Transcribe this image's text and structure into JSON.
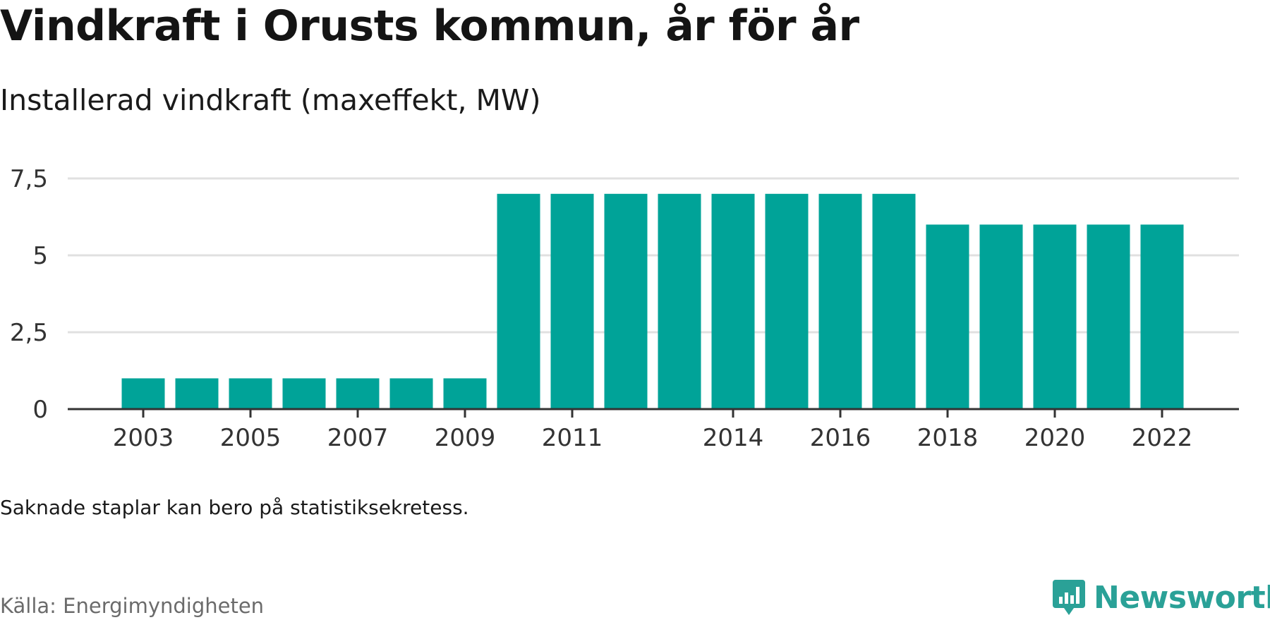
{
  "title": "Vindkraft i Orusts kommun, år för år",
  "subtitle": "Installerad vindkraft (maxeffekt, MW)",
  "note": "Saknade staplar kan bero på statistiksekretess.",
  "source": "Källa: Energimyndigheten",
  "brand": {
    "name": "Newsworthy",
    "icon": "newsworthy-logo-icon"
  },
  "colors": {
    "bar": "#00a398",
    "grid": "#e0e0e0",
    "axis": "#333333",
    "tick_text": "#333333",
    "brand": "#2aa197"
  },
  "chart_data": {
    "type": "bar",
    "title": "",
    "xlabel": "",
    "ylabel": "",
    "categories": [
      "2003",
      "2004",
      "2005",
      "2006",
      "2007",
      "2008",
      "2009",
      "2010",
      "2011",
      "2012",
      "2013",
      "2014",
      "2015",
      "2016",
      "2017",
      "2018",
      "2019",
      "2020",
      "2021",
      "2022"
    ],
    "values": [
      1,
      1,
      1,
      1,
      1,
      1,
      1,
      7,
      7,
      7,
      7,
      7,
      7,
      7,
      7,
      6,
      6,
      6,
      6,
      6
    ],
    "x_tick_labels": [
      "2003",
      "2005",
      "2007",
      "2009",
      "2011",
      "2014",
      "2016",
      "2018",
      "2020",
      "2022"
    ],
    "y_ticks": [
      0,
      2.5,
      5,
      7.5
    ],
    "y_tick_labels": [
      "0",
      "2,5",
      "5",
      "7,5"
    ],
    "ylim": [
      0,
      7.5
    ],
    "grid": true
  }
}
